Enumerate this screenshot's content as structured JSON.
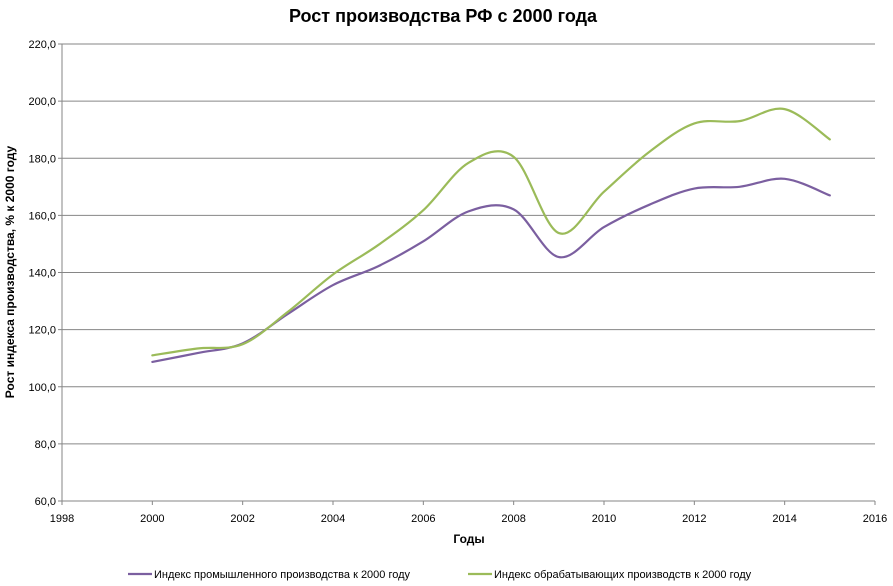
{
  "chart_data": {
    "type": "line",
    "title": "Рост производства РФ с 2000 года",
    "xlabel": "Годы",
    "ylabel": "Рост индекса производства, % к 2000  году",
    "xlim": [
      1998,
      2016
    ],
    "ylim": [
      60,
      220
    ],
    "x_ticks": [
      "1998",
      "2000",
      "2002",
      "2004",
      "2006",
      "2008",
      "2010",
      "2012",
      "2014",
      "2016"
    ],
    "y_ticks": [
      "60,0",
      "80,0",
      "100,0",
      "120,0",
      "140,0",
      "160,0",
      "180,0",
      "200,0",
      "220,0"
    ],
    "grid": true,
    "legend_position": "bottom",
    "x": [
      2000,
      2001,
      2002,
      2003,
      2004,
      2005,
      2006,
      2007,
      2008,
      2009,
      2010,
      2011,
      2012,
      2013,
      2014,
      2015
    ],
    "series": [
      {
        "name": "Индекс промышленного производства к 2000 году",
        "color": "#7b5fa0",
        "values": [
          108.7,
          111.8,
          115.2,
          125.5,
          135.6,
          142.2,
          150.9,
          161.4,
          162.1,
          145.4,
          155.9,
          163.7,
          169.4,
          170.0,
          172.8,
          167.0
        ]
      },
      {
        "name": "Индекс обрабатывающих производств к 2000 году",
        "color": "#9bbb59",
        "values": [
          111.0,
          113.4,
          114.9,
          126.2,
          139.3,
          149.6,
          161.8,
          178.4,
          180.5,
          153.8,
          168.3,
          182.2,
          192.2,
          193.0,
          197.2,
          186.6
        ]
      }
    ]
  }
}
